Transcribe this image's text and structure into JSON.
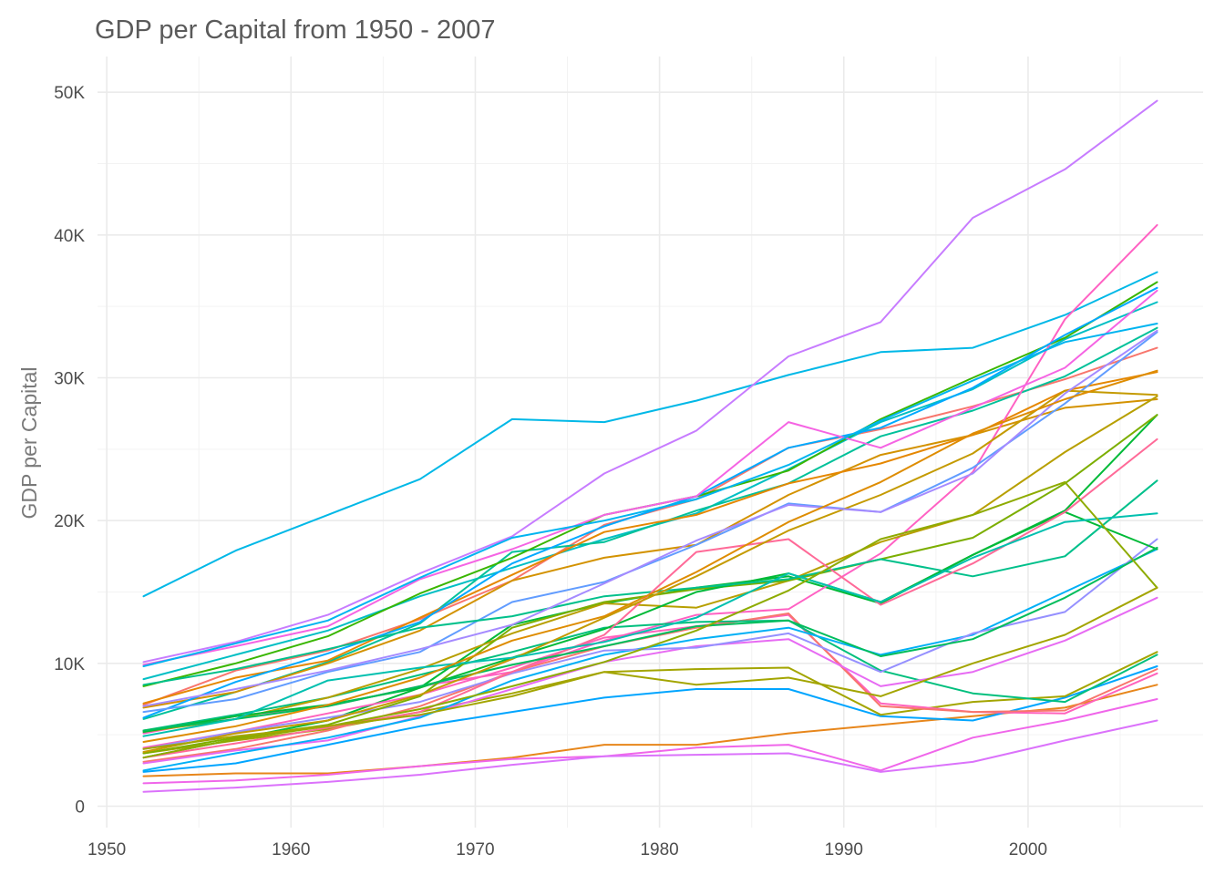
{
  "chart_data": {
    "type": "line",
    "title": "GDP per Capital from 1950 - 2007",
    "xlabel": "",
    "ylabel": "GDP per Capital",
    "xlim": [
      1949.5,
      2009.5
    ],
    "ylim": [
      -1500,
      52500
    ],
    "x_ticks": [
      1950,
      1960,
      1970,
      1980,
      1990,
      2000
    ],
    "x_tick_labels": [
      "1950",
      "1960",
      "1970",
      "1980",
      "1990",
      "2000"
    ],
    "y_ticks": [
      0,
      10000,
      20000,
      30000,
      40000,
      50000
    ],
    "y_tick_labels": [
      "0",
      "10K",
      "20K",
      "30K",
      "40K",
      "50K"
    ],
    "grid": true,
    "legend": "none",
    "x": [
      1952,
      1957,
      1962,
      1967,
      1972,
      1977,
      1982,
      1987,
      1992,
      1997,
      2002,
      2007
    ],
    "series": [
      {
        "color": "#E7861B",
        "values": [
          2100,
          2300,
          2300,
          2800,
          3400,
          4300,
          4300,
          5100,
          5700,
          6300,
          6900,
          8500
        ]
      },
      {
        "color": "#F066EA",
        "values": [
          1600,
          1800,
          2200,
          2800,
          3300,
          3500,
          4100,
          4300,
          2500,
          4800,
          6000,
          7500
        ]
      },
      {
        "color": "#DB72FB",
        "values": [
          1000,
          1300,
          1700,
          2200,
          2900,
          3500,
          3600,
          3700,
          2400,
          3100,
          4600,
          6000
        ]
      },
      {
        "color": "#00A5FF",
        "values": [
          2400,
          3000,
          4300,
          5600,
          6600,
          7600,
          8200,
          8200,
          6300,
          6000,
          7600,
          9800
        ]
      },
      {
        "color": "#A3A500",
        "values": [
          3700,
          4600,
          5400,
          6600,
          7900,
          9400,
          9600,
          9700,
          6400,
          7300,
          7700,
          10800
        ]
      },
      {
        "color": "#00BA38",
        "values": [
          3400,
          4700,
          6000,
          8300,
          12700,
          14200,
          15300,
          16100,
          14200,
          17600,
          20700,
          27400
        ]
      },
      {
        "color": "#00B8E7",
        "values": [
          14700,
          17900,
          20400,
          22900,
          27100,
          26900,
          28400,
          30200,
          31800,
          32100,
          34400,
          37400
        ]
      },
      {
        "color": "#C77CFF",
        "values": [
          10100,
          11500,
          13400,
          16300,
          18900,
          23300,
          26300,
          31500,
          33900,
          41200,
          44600,
          49400
        ]
      },
      {
        "color": "#F8766D",
        "values": [
          7100,
          9500,
          10900,
          13100,
          15800,
          19700,
          21500,
          25100,
          26400,
          28000,
          29900,
          32100
        ]
      },
      {
        "color": "#00BFC4",
        "values": [
          8900,
          10600,
          12300,
          14700,
          16700,
          18700,
          20500,
          23600,
          26900,
          29200,
          32700,
          35300
        ]
      },
      {
        "color": "#00C19A",
        "values": [
          6100,
          8000,
          10100,
          12800,
          17800,
          18500,
          20700,
          22600,
          25900,
          27700,
          30100,
          33500
        ]
      },
      {
        "color": "#39B600",
        "values": [
          8400,
          10000,
          11900,
          14900,
          17400,
          20400,
          21700,
          23500,
          27100,
          30000,
          32800,
          36700
        ]
      },
      {
        "color": "#D39200",
        "values": [
          6900,
          8000,
          10000,
          12300,
          15800,
          17400,
          18300,
          21800,
          24600,
          26000,
          27900,
          28500
        ]
      },
      {
        "color": "#E58700",
        "values": [
          7200,
          9000,
          10200,
          13200,
          16200,
          19200,
          20400,
          22600,
          24000,
          26000,
          29100,
          30400
        ]
      },
      {
        "color": "#FF61C3",
        "values": [
          5100,
          6300,
          7000,
          8400,
          9400,
          11600,
          13400,
          13800,
          17700,
          23400,
          34100,
          40700
        ]
      },
      {
        "color": "#FF62BC",
        "values": [
          4100,
          5200,
          6500,
          7800,
          9700,
          11800,
          12600,
          13400,
          7200,
          6600,
          6500,
          9300
        ]
      },
      {
        "color": "#F8766D",
        "values": [
          3100,
          4000,
          5300,
          7000,
          9400,
          11200,
          12500,
          13500,
          7000,
          6600,
          6700,
          9600
        ]
      },
      {
        "color": "#00BF7D",
        "values": [
          5300,
          6400,
          7600,
          9200,
          10800,
          12500,
          12900,
          13000,
          9500,
          7900,
          7300,
          10600
        ]
      },
      {
        "color": "#E76BF3",
        "values": [
          3000,
          3900,
          4600,
          6300,
          8200,
          10100,
          11200,
          11700,
          8400,
          9400,
          11600,
          14600
        ]
      },
      {
        "color": "#00B0F6",
        "values": [
          2500,
          3700,
          4800,
          6200,
          8800,
          10600,
          11700,
          12500,
          10600,
          12000,
          15000,
          18000
        ]
      },
      {
        "color": "#9590FF",
        "values": [
          4000,
          5200,
          6200,
          7300,
          9300,
          10900,
          11100,
          12100,
          9400,
          12100,
          13600,
          18700
        ]
      },
      {
        "color": "#B79F00",
        "values": [
          5200,
          6100,
          7600,
          9600,
          12100,
          14200,
          13900,
          15800,
          18500,
          20400,
          24800,
          28700
        ]
      },
      {
        "color": "#7CAE00",
        "values": [
          3700,
          4800,
          5700,
          7700,
          12500,
          14300,
          15200,
          15800,
          17300,
          18800,
          22600,
          27400
        ]
      },
      {
        "color": "#00BA38",
        "values": [
          5200,
          6300,
          7100,
          8300,
          10400,
          12400,
          15000,
          16300,
          14300,
          17600,
          20600,
          18000
        ]
      },
      {
        "color": "#00A9FF",
        "values": [
          6200,
          8700,
          10700,
          12900,
          17000,
          19600,
          21700,
          25100,
          26500,
          29300,
          33000,
          36300
        ]
      },
      {
        "color": "#619CFF",
        "values": [
          6600,
          7500,
          9400,
          10800,
          14300,
          15700,
          18300,
          21200,
          20600,
          23700,
          28200,
          33200
        ]
      },
      {
        "color": "#00C08B",
        "values": [
          8500,
          9600,
          11000,
          12500,
          13300,
          14700,
          15300,
          15900,
          17300,
          16100,
          17500,
          22800
        ]
      },
      {
        "color": "#FF6A98",
        "values": [
          3400,
          4400,
          5500,
          6600,
          9400,
          12000,
          17800,
          18700,
          14100,
          17000,
          20600,
          25700
        ]
      },
      {
        "color": "#F564E3",
        "values": [
          9900,
          11200,
          12600,
          15900,
          18000,
          20400,
          21700,
          26900,
          25100,
          27900,
          30700,
          36100
        ]
      },
      {
        "color": "#00B4F0",
        "values": [
          9800,
          11400,
          13000,
          16000,
          18800,
          20000,
          21500,
          23900,
          27000,
          29800,
          32500,
          33800
        ]
      },
      {
        "color": "#00BD5C",
        "values": [
          5300,
          6100,
          7000,
          8400,
          9900,
          11200,
          12600,
          13000,
          10500,
          11700,
          14600,
          18100
        ]
      },
      {
        "color": "#C49A00",
        "values": [
          3800,
          5100,
          6000,
          7800,
          10300,
          13200,
          16100,
          19300,
          21800,
          24700,
          29100,
          28800
        ]
      },
      {
        "color": "#00C0AF",
        "values": [
          4900,
          6100,
          8800,
          9700,
          10400,
          11500,
          13200,
          16300,
          14300,
          17400,
          19900,
          20500
        ]
      },
      {
        "color": "#A58AFF",
        "values": [
          7000,
          8200,
          9500,
          11000,
          12700,
          15600,
          18600,
          21100,
          20600,
          23300,
          28900,
          33300
        ]
      },
      {
        "color": "#DE8C00",
        "values": [
          4500,
          5600,
          7100,
          9000,
          11600,
          13300,
          16400,
          19900,
          22700,
          26100,
          28500,
          30500
        ]
      },
      {
        "color": "#8EAB00",
        "values": [
          3400,
          4700,
          5600,
          6800,
          8400,
          10100,
          12300,
          15100,
          18700,
          20400,
          22700,
          15300
        ]
      },
      {
        "color": "#A3A500",
        "values": [
          4000,
          4900,
          5600,
          6400,
          7700,
          9400,
          8500,
          9000,
          7700,
          10000,
          12000,
          15300
        ]
      }
    ]
  }
}
